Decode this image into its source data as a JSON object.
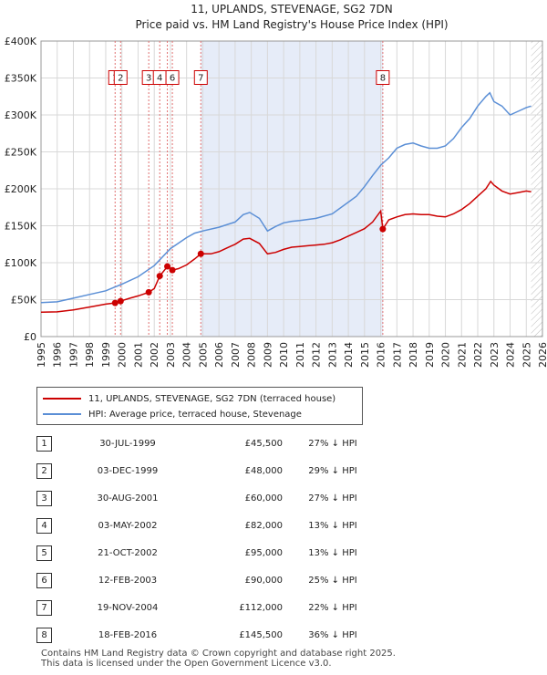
{
  "chart_data": {
    "type": "line",
    "title": "11, UPLANDS, STEVENAGE, SG2 7DN",
    "subtitle": "Price paid vs. HM Land Registry's House Price Index (HPI)",
    "xlim": [
      1995,
      2026
    ],
    "ylim": [
      0,
      400000
    ],
    "x_ticks": [
      "1995",
      "1996",
      "1997",
      "1998",
      "1999",
      "2000",
      "2001",
      "2002",
      "2003",
      "2004",
      "2005",
      "2006",
      "2007",
      "2008",
      "2009",
      "2010",
      "2011",
      "2012",
      "2013",
      "2014",
      "2015",
      "2016",
      "2017",
      "2018",
      "2019",
      "2020",
      "2021",
      "2022",
      "2023",
      "2024",
      "2025",
      "2026"
    ],
    "y_ticks": [
      {
        "value": 0,
        "label": "£0"
      },
      {
        "value": 50000,
        "label": "£50K"
      },
      {
        "value": 100000,
        "label": "£100K"
      },
      {
        "value": 150000,
        "label": "£150K"
      },
      {
        "value": 200000,
        "label": "£200K"
      },
      {
        "value": 250000,
        "label": "£250K"
      },
      {
        "value": 300000,
        "label": "£300K"
      },
      {
        "value": 350000,
        "label": "£350K"
      },
      {
        "value": 400000,
        "label": "£400K"
      }
    ],
    "grid": true,
    "shaded_period": [
      2004.88,
      2016.13
    ],
    "future_hatch_from": 2025.3,
    "series": [
      {
        "name": "11, UPLANDS, STEVENAGE, SG2 7DN (terraced house)",
        "color": "#cc0000",
        "points": [
          [
            1995.0,
            33000
          ],
          [
            1996.0,
            33500
          ],
          [
            1997.0,
            36000
          ],
          [
            1998.0,
            40000
          ],
          [
            1999.0,
            44000
          ],
          [
            1999.58,
            45500
          ],
          [
            1999.92,
            48000
          ],
          [
            2000.5,
            52000
          ],
          [
            2001.0,
            55000
          ],
          [
            2001.66,
            60000
          ],
          [
            2002.0,
            65000
          ],
          [
            2002.34,
            82000
          ],
          [
            2002.81,
            95000
          ],
          [
            2003.12,
            90000
          ],
          [
            2003.5,
            92000
          ],
          [
            2004.0,
            97000
          ],
          [
            2004.5,
            105000
          ],
          [
            2004.88,
            112000
          ],
          [
            2005.5,
            112000
          ],
          [
            2006.0,
            115000
          ],
          [
            2006.5,
            120000
          ],
          [
            2007.0,
            125000
          ],
          [
            2007.5,
            132000
          ],
          [
            2007.9,
            133000
          ],
          [
            2008.5,
            126000
          ],
          [
            2009.0,
            112000
          ],
          [
            2009.5,
            114000
          ],
          [
            2010.0,
            118000
          ],
          [
            2010.5,
            121000
          ],
          [
            2011.0,
            122000
          ],
          [
            2011.5,
            123000
          ],
          [
            2012.0,
            124000
          ],
          [
            2012.5,
            125000
          ],
          [
            2013.0,
            127000
          ],
          [
            2013.5,
            131000
          ],
          [
            2014.0,
            136000
          ],
          [
            2014.5,
            141000
          ],
          [
            2015.0,
            146000
          ],
          [
            2015.5,
            155000
          ],
          [
            2016.0,
            170000
          ],
          [
            2016.13,
            145500
          ],
          [
            2016.5,
            158000
          ],
          [
            2017.0,
            162000
          ],
          [
            2017.5,
            165000
          ],
          [
            2018.0,
            166000
          ],
          [
            2018.5,
            165000
          ],
          [
            2019.0,
            165000
          ],
          [
            2019.5,
            163000
          ],
          [
            2020.0,
            162000
          ],
          [
            2020.5,
            166000
          ],
          [
            2021.0,
            172000
          ],
          [
            2021.5,
            180000
          ],
          [
            2022.0,
            190000
          ],
          [
            2022.5,
            200000
          ],
          [
            2022.8,
            210000
          ],
          [
            2023.0,
            205000
          ],
          [
            2023.5,
            197000
          ],
          [
            2024.0,
            193000
          ],
          [
            2024.5,
            195000
          ],
          [
            2025.0,
            197000
          ],
          [
            2025.3,
            196000
          ]
        ]
      },
      {
        "name": "HPI: Average price, terraced house, Stevenage",
        "color": "#5b8fd6",
        "points": [
          [
            1995.0,
            46000
          ],
          [
            1996.0,
            47000
          ],
          [
            1997.0,
            52000
          ],
          [
            1998.0,
            57000
          ],
          [
            1999.0,
            62000
          ],
          [
            2000.0,
            71000
          ],
          [
            2001.0,
            81000
          ],
          [
            2002.0,
            96000
          ],
          [
            2003.0,
            119000
          ],
          [
            2004.0,
            134000
          ],
          [
            2004.5,
            140000
          ],
          [
            2005.0,
            143000
          ],
          [
            2006.0,
            148000
          ],
          [
            2007.0,
            155000
          ],
          [
            2007.5,
            165000
          ],
          [
            2007.9,
            168000
          ],
          [
            2008.5,
            160000
          ],
          [
            2009.0,
            143000
          ],
          [
            2009.5,
            149000
          ],
          [
            2010.0,
            154000
          ],
          [
            2010.5,
            156000
          ],
          [
            2011.0,
            157000
          ],
          [
            2012.0,
            160000
          ],
          [
            2013.0,
            166000
          ],
          [
            2014.0,
            182000
          ],
          [
            2014.5,
            190000
          ],
          [
            2015.0,
            203000
          ],
          [
            2015.5,
            218000
          ],
          [
            2016.0,
            232000
          ],
          [
            2016.5,
            242000
          ],
          [
            2017.0,
            255000
          ],
          [
            2017.5,
            260000
          ],
          [
            2018.0,
            262000
          ],
          [
            2018.5,
            258000
          ],
          [
            2019.0,
            255000
          ],
          [
            2019.5,
            255000
          ],
          [
            2020.0,
            258000
          ],
          [
            2020.5,
            268000
          ],
          [
            2021.0,
            283000
          ],
          [
            2021.5,
            295000
          ],
          [
            2022.0,
            312000
          ],
          [
            2022.5,
            325000
          ],
          [
            2022.75,
            330000
          ],
          [
            2023.0,
            318000
          ],
          [
            2023.5,
            312000
          ],
          [
            2024.0,
            300000
          ],
          [
            2024.5,
            305000
          ],
          [
            2025.0,
            310000
          ],
          [
            2025.3,
            312000
          ]
        ]
      }
    ],
    "sales": [
      {
        "label": "1",
        "x": 1999.58,
        "price": 45500
      },
      {
        "label": "2",
        "x": 1999.92,
        "price": 48000
      },
      {
        "label": "3",
        "x": 2001.66,
        "price": 60000
      },
      {
        "label": "4",
        "x": 2002.34,
        "price": 82000
      },
      {
        "label": "5",
        "x": 2002.81,
        "price": 95000
      },
      {
        "label": "6",
        "x": 2003.12,
        "price": 90000
      },
      {
        "label": "7",
        "x": 2004.88,
        "price": 112000
      },
      {
        "label": "8",
        "x": 2016.13,
        "price": 145500
      }
    ],
    "visible_box_labels": [
      "1",
      "2",
      "3",
      "4",
      "6",
      "7",
      "8"
    ]
  },
  "legend": {
    "property_label": "11, UPLANDS, STEVENAGE, SG2 7DN (terraced house)",
    "hpi_label": "HPI: Average price, terraced house, Stevenage"
  },
  "table_rows": [
    {
      "num": "1",
      "date": "30-JUL-1999",
      "price": "£45,500",
      "hpi": "27% ↓ HPI"
    },
    {
      "num": "2",
      "date": "03-DEC-1999",
      "price": "£48,000",
      "hpi": "29% ↓ HPI"
    },
    {
      "num": "3",
      "date": "30-AUG-2001",
      "price": "£60,000",
      "hpi": "27% ↓ HPI"
    },
    {
      "num": "4",
      "date": "03-MAY-2002",
      "price": "£82,000",
      "hpi": "13% ↓ HPI"
    },
    {
      "num": "5",
      "date": "21-OCT-2002",
      "price": "£95,000",
      "hpi": "13% ↓ HPI"
    },
    {
      "num": "6",
      "date": "12-FEB-2003",
      "price": "£90,000",
      "hpi": "25% ↓ HPI"
    },
    {
      "num": "7",
      "date": "19-NOV-2004",
      "price": "£112,000",
      "hpi": "22% ↓ HPI"
    },
    {
      "num": "8",
      "date": "18-FEB-2016",
      "price": "£145,500",
      "hpi": "36% ↓ HPI"
    }
  ],
  "footer": {
    "line1": "Contains HM Land Registry data © Crown copyright and database right 2025.",
    "line2": "This data is licensed under the Open Government Licence v3.0."
  },
  "colors": {
    "property": "#cc0000",
    "hpi": "#5b8fd6",
    "shade": "#e6ecf8",
    "grid": "#d8d8d8",
    "sale_line": "#e07070"
  }
}
